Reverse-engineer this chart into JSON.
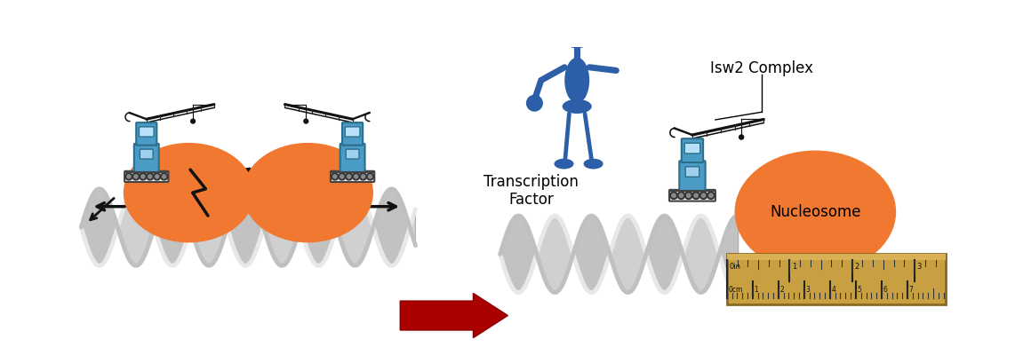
{
  "background_color": "#ffffff",
  "nucleosome_color": "#f07830",
  "crane_body_color": "#4a9cc7",
  "crane_light_color": "#a8d4e8",
  "crane_dark_color": "#2c6e8a",
  "tf_body_color": "#2c5fa8",
  "tf_hat_color": "#1a1a1a",
  "dna_color1": "#d8d8d8",
  "dna_color2": "#b0b0b0",
  "dna_inner": "#888888",
  "arrow_color": "#aa0000",
  "text_color": "#000000",
  "title_isw2": "Isw2 Complex",
  "label_tf": "Transcription\nFactor",
  "label_nucleosome": "Nucleosome",
  "ruler_color": "#c8a042",
  "ruler_dark": "#8a6820",
  "figsize": [
    11.6,
    3.91
  ],
  "dpi": 100
}
